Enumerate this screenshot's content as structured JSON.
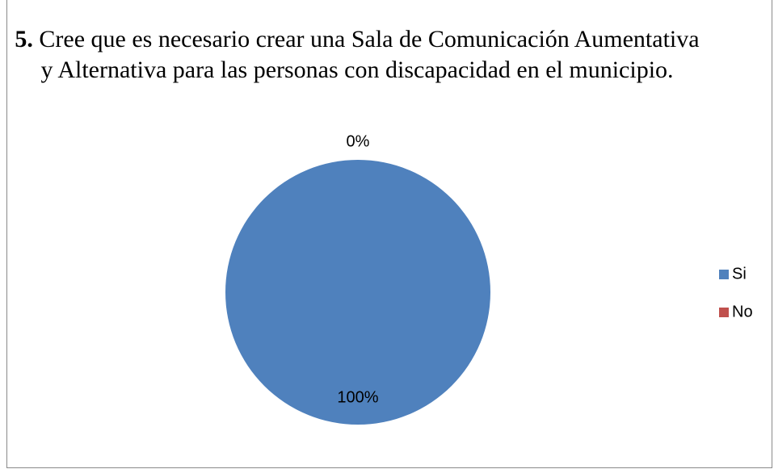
{
  "chart_data": {
    "type": "pie",
    "title_number": "5.",
    "title_text": " Cree que es necesario crear una Sala de Comunicación Aumentativa y Alternativa para las personas con discapacidad en el municipio.",
    "categories": [
      "Si",
      "No"
    ],
    "values": [
      100,
      0
    ],
    "data_labels": [
      "100%",
      "0%"
    ],
    "colors": [
      "#4F81BD",
      "#C0504D"
    ],
    "legend_position": "right"
  }
}
